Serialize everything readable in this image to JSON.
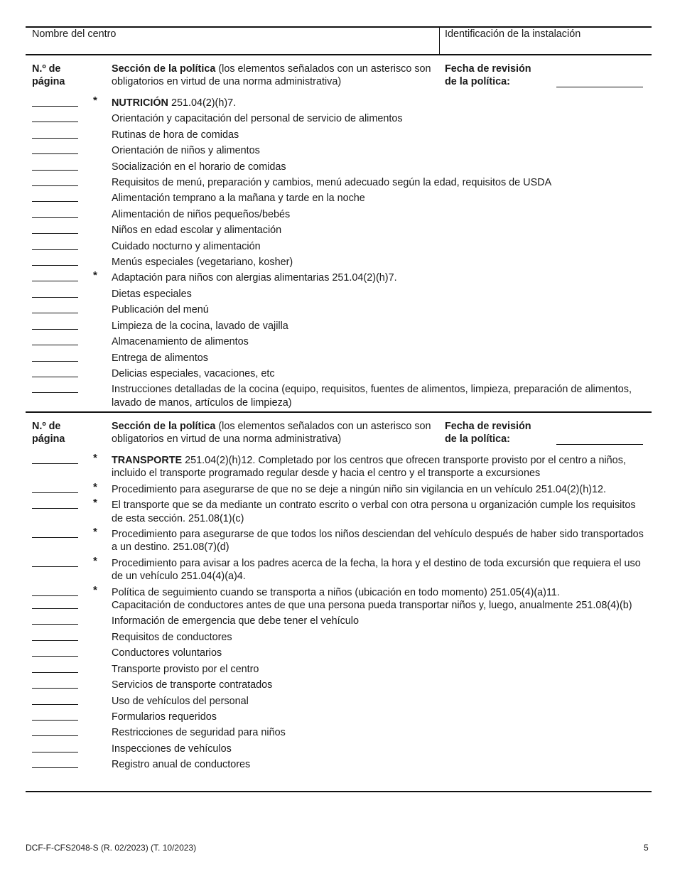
{
  "header": {
    "center_name_label": "Nombre del centro",
    "facility_id_label": "Identificación de la instalación"
  },
  "sections": [
    {
      "page_col": "N.º de página",
      "section_bold": "Sección de la política",
      "section_note": " (los elementos señalados con un asterisco son obligatorios en virtud de una norma administrativa)",
      "date_label": "Fecha de revisión de la política:",
      "items": [
        {
          "star": true,
          "bold": "NUTRICIÓN",
          "text": " 251.04(2)(h)7."
        },
        {
          "text": "Orientación y capacitación del personal de servicio de alimentos"
        },
        {
          "text": "Rutinas de hora de comidas"
        },
        {
          "text": "Orientación de niños y alimentos"
        },
        {
          "text": "Socialización en el horario de comidas"
        },
        {
          "text": "Requisitos de menú, preparación y cambios, menú adecuado según la edad, requisitos de USDA"
        },
        {
          "text": "Alimentación temprano a la mañana y tarde en la noche"
        },
        {
          "text": "Alimentación de niños pequeños/bebés"
        },
        {
          "text": "Niños en edad escolar y alimentación"
        },
        {
          "text": "Cuidado nocturno y alimentación"
        },
        {
          "text": "Menús especiales (vegetariano, kosher)"
        },
        {
          "star": true,
          "text": "Adaptación para niños con alergias alimentarias 251.04(2)(h)7."
        },
        {
          "text": "Dietas especiales"
        },
        {
          "text": "Publicación del menú"
        },
        {
          "text": "Limpieza de la cocina, lavado de vajilla"
        },
        {
          "text": "Almacenamiento de alimentos"
        },
        {
          "text": "Entrega de alimentos"
        },
        {
          "text": "Delicias especiales, vacaciones, etc"
        },
        {
          "text": "Instrucciones detalladas de la cocina (equipo, requisitos, fuentes de alimentos, limpieza, preparación de alimentos, lavado de manos, artículos de limpieza)"
        }
      ]
    },
    {
      "page_col": "N.º de página",
      "section_bold": "Sección de la política",
      "section_note": " (los elementos señalados con un asterisco son obligatorios en virtud de una norma administrativa)",
      "date_label": "Fecha de revisión de la política:",
      "items": [
        {
          "star": true,
          "bold": "TRANSPORTE",
          "text": " 251.04(2)(h)12. Completado por los centros que ofrecen transporte provisto por el centro a niños, incluido el transporte programado regular desde y hacia el centro y el transporte a excursiones"
        },
        {
          "star": true,
          "text": "Procedimiento para asegurarse de que no se deje a ningún niño sin vigilancia en un vehículo 251.04(2)(h)12."
        },
        {
          "star": true,
          "text": "El transporte que se da mediante un contrato escrito o verbal con otra persona u organización cumple los requisitos de esta sección. 251.08(1)(c)"
        },
        {
          "star": true,
          "text": "Procedimiento para asegurarse de que todos los niños desciendan del vehículo después de haber sido transportados a un destino. 251.08(7)(d)"
        },
        {
          "star": true,
          "text": "Procedimiento para avisar a los padres acerca de la fecha, la hora y el destino de toda excursión que requiera el uso de un vehículo 251.04(4)(a)4."
        },
        {
          "star": true,
          "text": "Política de seguimiento cuando se transporta a niños (ubicación en todo momento) 251.05(4)(a)11."
        },
        {
          "text": "Capacitación de conductores antes de que una persona pueda transportar niños y, luego, anualmente 251.08(4)(b)"
        },
        {
          "text": "Información de emergencia que debe tener el vehículo"
        },
        {
          "text": "Requisitos de conductores"
        },
        {
          "text": "Conductores voluntarios"
        },
        {
          "text": "Transporte provisto por el centro"
        },
        {
          "text": "Servicios de transporte contratados"
        },
        {
          "text": "Uso de vehículos del personal"
        },
        {
          "text": "Formularios requeridos"
        },
        {
          "text": "Restricciones de seguridad para niños"
        },
        {
          "text": "Inspecciones de vehículos"
        },
        {
          "text": "Registro anual de conductores"
        }
      ]
    }
  ],
  "footer": {
    "form_id": "DCF-F-CFS2048-S (R. 02/2023) (T. 10/2023)",
    "page_number": "5"
  }
}
